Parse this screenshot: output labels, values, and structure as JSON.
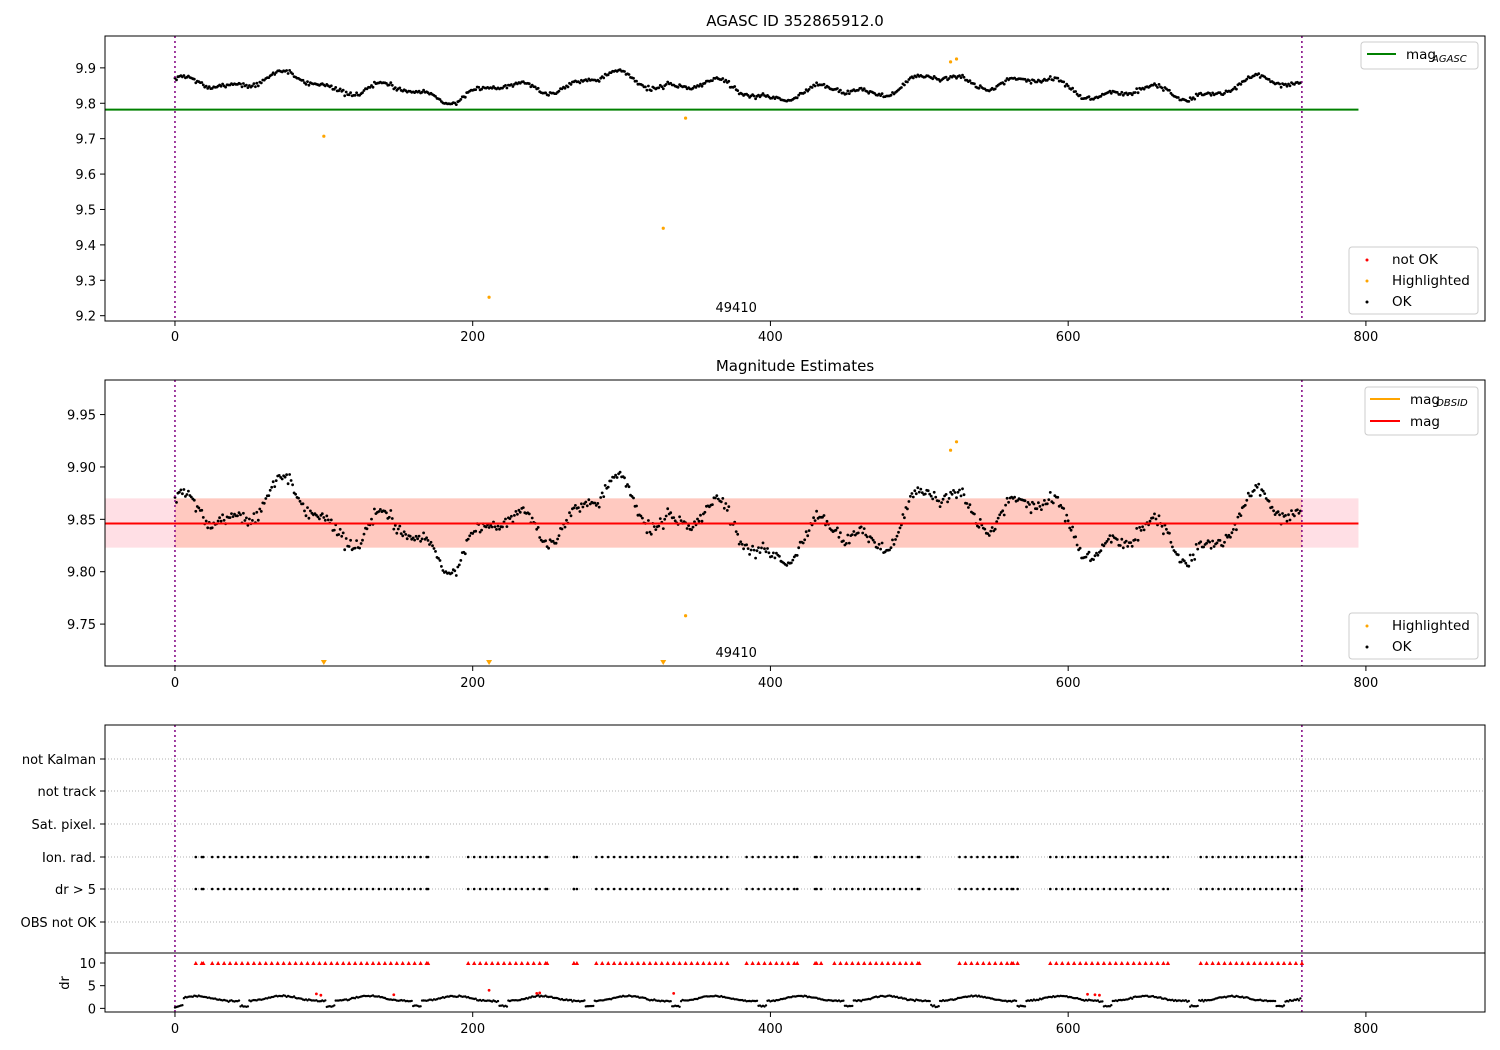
{
  "chart_data": [
    {
      "type": "scatter",
      "title": "AGASC ID 352865912.0",
      "xlim": [
        -47,
        880
      ],
      "ylim": [
        9.185,
        9.99
      ],
      "x_ticks": [
        0,
        200,
        400,
        600,
        800
      ],
      "y_ticks": [
        9.2,
        9.3,
        9.4,
        9.5,
        9.6,
        9.7,
        9.8,
        9.9
      ],
      "vlines": [
        0,
        757
      ],
      "obsid_label": "49410",
      "obsid_label_x": 377,
      "lines": [
        {
          "name": "mag",
          "sub": "AGASC",
          "y": 9.782,
          "x_range": [
            -47,
            795
          ],
          "color": "#008000"
        }
      ],
      "series": [
        {
          "name": "not OK",
          "color": "#ff0000",
          "points": []
        },
        {
          "name": "Highlighted",
          "color": "#ffa500",
          "points": [
            [
              100,
              9.707
            ],
            [
              211,
              9.252
            ],
            [
              328,
              9.447
            ],
            [
              343,
              9.758
            ],
            [
              521,
              9.917
            ],
            [
              525,
              9.925
            ]
          ]
        },
        {
          "name": "OK",
          "color": "#000000",
          "trace": {
            "n": 757,
            "x_start": 0,
            "x_end": 757,
            "step": 1
          }
        }
      ],
      "legend_top": {
        "placement": "upper right",
        "entries": [
          {
            "name": "mag",
            "sub": "AGASC",
            "color": "#008000"
          }
        ]
      },
      "legend_bottom": {
        "placement": "lower right",
        "entries": [
          {
            "name": "not OK",
            "color": "#ff0000"
          },
          {
            "name": "Highlighted",
            "color": "#ffa500"
          },
          {
            "name": "OK",
            "color": "#000000"
          }
        ]
      }
    },
    {
      "type": "scatter",
      "title": "Magnitude Estimates",
      "xlim": [
        -47,
        880
      ],
      "ylim": [
        9.71,
        9.983
      ],
      "x_ticks": [
        0,
        200,
        400,
        600,
        800
      ],
      "y_ticks": [
        9.75,
        9.8,
        9.85,
        9.9,
        9.95
      ],
      "y_tick_labels": [
        "9.75",
        "9.80",
        "9.85",
        "9.90",
        "9.95"
      ],
      "vlines": [
        0,
        757
      ],
      "obsid_label": "49410",
      "obsid_label_x": 377,
      "mag": 9.846,
      "band_outer": {
        "y_range": [
          9.823,
          9.87
        ],
        "x_range": [
          -47,
          795
        ],
        "color": "#ffc0cb"
      },
      "band_inner": {
        "y_range": [
          9.823,
          9.87
        ],
        "x_range": [
          0,
          757
        ],
        "color": "#ffa07a"
      },
      "lines": [
        {
          "name": "mag",
          "sub": "OBSID",
          "y": 9.846,
          "x_range": [
            0,
            757
          ],
          "color": "#ffa500"
        },
        {
          "name": "mag",
          "y": 9.846,
          "x_range": [
            -47,
            795
          ],
          "color": "#ff0000"
        }
      ],
      "series": [
        {
          "name": "Highlighted",
          "color": "#ffa500",
          "points": [
            [
              343,
              9.758
            ],
            [
              521,
              9.916
            ],
            [
              525,
              9.924
            ]
          ],
          "below_range_x": [
            100,
            211,
            328
          ]
        },
        {
          "name": "OK",
          "color": "#000000",
          "trace": {
            "n": 757,
            "x_start": 0,
            "x_end": 757,
            "step": 1
          }
        }
      ],
      "legend_top": {
        "placement": "upper right",
        "entries": [
          {
            "name": "mag",
            "sub": "OBSID",
            "color": "#ffa500"
          },
          {
            "name": "mag",
            "color": "#ff0000"
          }
        ]
      },
      "legend_bottom": {
        "placement": "lower right",
        "entries": [
          {
            "name": "Highlighted",
            "color": "#ffa500"
          },
          {
            "name": "OK",
            "color": "#000000"
          }
        ]
      }
    },
    {
      "type": "scatter",
      "title": "",
      "xlim": [
        -47,
        880
      ],
      "vlines": [
        0,
        757
      ],
      "flag_rows": [
        "not Kalman",
        "not track",
        "Sat. pixel.",
        "Ion. rad.",
        "dr > 5",
        "OBS not OK"
      ],
      "flag_segments": [
        [
          14,
          19
        ],
        [
          25,
          170
        ],
        [
          197,
          250
        ],
        [
          268,
          270
        ],
        [
          283,
          371
        ],
        [
          384,
          418
        ],
        [
          431,
          434
        ],
        [
          443,
          500
        ],
        [
          527,
          566
        ],
        [
          588,
          667
        ],
        [
          689,
          757
        ]
      ],
      "single_dots": [
        268,
        430,
        562
      ],
      "dr": {
        "ylim": [
          -0.8,
          12.2
        ],
        "y_ticks": [
          0,
          5,
          10
        ],
        "ylabel": "dr",
        "clip": 10,
        "outliers": [
          [
            95,
            3.2
          ],
          [
            98,
            2.9
          ],
          [
            147,
            3.0
          ],
          [
            211,
            4.0
          ],
          [
            243,
            3.3
          ],
          [
            245,
            3.4
          ],
          [
            335,
            3.3
          ],
          [
            613,
            3.1
          ],
          [
            618,
            3.0
          ],
          [
            621,
            2.9
          ]
        ]
      }
    }
  ]
}
